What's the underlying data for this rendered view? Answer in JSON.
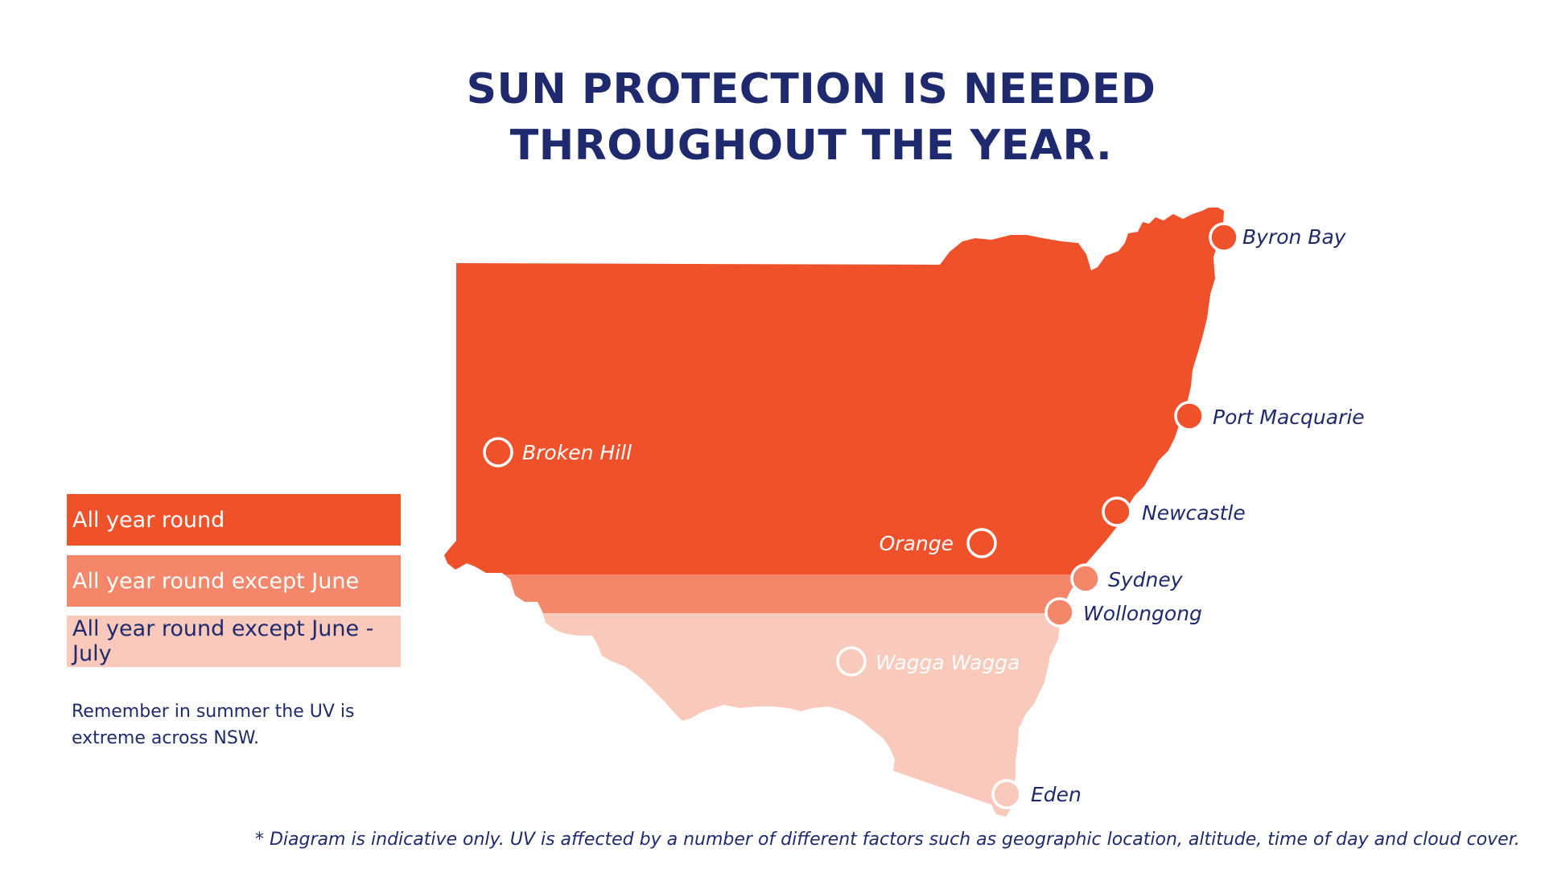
{
  "title": {
    "line1": "SUN PROTECTION IS NEEDED",
    "line2": "THROUGHOUT THE YEAR."
  },
  "legend": [
    {
      "label": "All year round",
      "color": "#ef512b"
    },
    {
      "label": "All year round except June",
      "color": "#f4866a"
    },
    {
      "label": "All year round except June - July",
      "color": "#f9c9bb"
    }
  ],
  "note": "Remember in summer the UV is extreme across NSW.",
  "footnote": "* Diagram is indicative only. UV is affected by a number of different factors such as geographic location, altitude, time of day and cloud cover.",
  "map": {
    "region": "NSW",
    "cities": [
      {
        "name": "Byron Bay",
        "zone": "All year round"
      },
      {
        "name": "Port Macquarie",
        "zone": "All year round"
      },
      {
        "name": "Broken Hill",
        "zone": "All year round"
      },
      {
        "name": "Newcastle",
        "zone": "All year round"
      },
      {
        "name": "Orange",
        "zone": "All year round"
      },
      {
        "name": "Sydney",
        "zone": "All year round except June"
      },
      {
        "name": "Wollongong",
        "zone": "All year round except June"
      },
      {
        "name": "Wagga Wagga",
        "zone": "All year round except June - July"
      },
      {
        "name": "Eden",
        "zone": "All year round except June - July"
      }
    ]
  },
  "colors": {
    "navy": "#1f2a6e",
    "zone_all_year": "#ef512b",
    "zone_except_june": "#f4866a",
    "zone_except_june_july": "#f9c9bb"
  }
}
